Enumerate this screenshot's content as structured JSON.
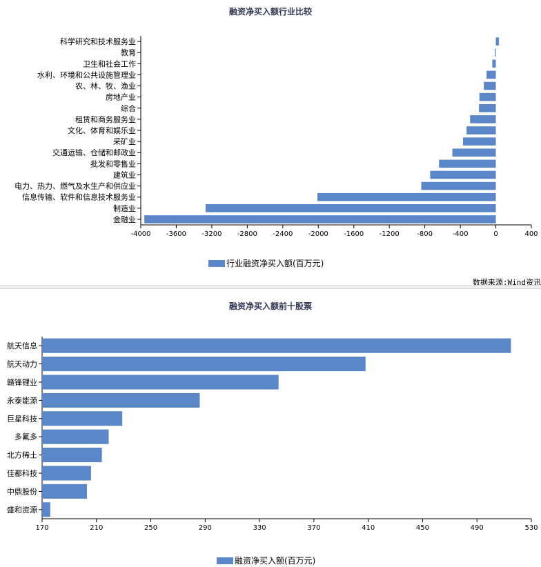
{
  "chart_data": [
    {
      "type": "bar",
      "orientation": "horizontal",
      "title": "融资净买入额行业比较",
      "categories": [
        "金融业",
        "制造业",
        "信息传输、软件和信息技术服务业",
        "电力、热力、燃气及水生产和供应业",
        "建筑业",
        "批发和零售业",
        "交通运输、仓储和邮政业",
        "采矿业",
        "文化、体育和娱乐业",
        "租赁和商务服务业",
        "综合",
        "房地产业",
        "农、林、牧、渔业",
        "水利、环境和公共设施管理业",
        "卫生和社会工作",
        "教育",
        "科学研究和技术服务业"
      ],
      "series": [
        {
          "name": "行业融资净买入额(百万元)",
          "values": [
            -3960,
            -3270,
            -2010,
            -840,
            -740,
            -640,
            -490,
            -370,
            -330,
            -290,
            -190,
            -185,
            -135,
            -105,
            -40,
            -10,
            35
          ]
        }
      ],
      "xlim": [
        -4000,
        400
      ],
      "xticks": [
        -4000,
        -3600,
        -3200,
        -2800,
        -2400,
        -2000,
        -1600,
        -1200,
        -800,
        -400,
        0,
        400
      ],
      "grid": false,
      "legend_position": "bottom",
      "color": "#5b87c9"
    },
    {
      "type": "bar",
      "orientation": "horizontal",
      "title": "融资净买入额前十股票",
      "categories": [
        "盛和资源",
        "中鼎股份",
        "佳都科技",
        "北方稀土",
        "多氟多",
        "巨星科技",
        "永泰能源",
        "赣锋锂业",
        "航天动力",
        "航天信息"
      ],
      "series": [
        {
          "name": "融资净买入额(百万元)",
          "values": [
            176,
            203,
            206,
            214,
            219,
            229,
            286,
            344,
            408,
            515
          ]
        }
      ],
      "xlim": [
        170,
        530
      ],
      "xticks": [
        170,
        210,
        250,
        290,
        330,
        370,
        410,
        450,
        490,
        530
      ],
      "grid": false,
      "legend_position": "bottom",
      "color": "#5b87c9"
    }
  ],
  "source_note": "数据来源:Wind资讯"
}
